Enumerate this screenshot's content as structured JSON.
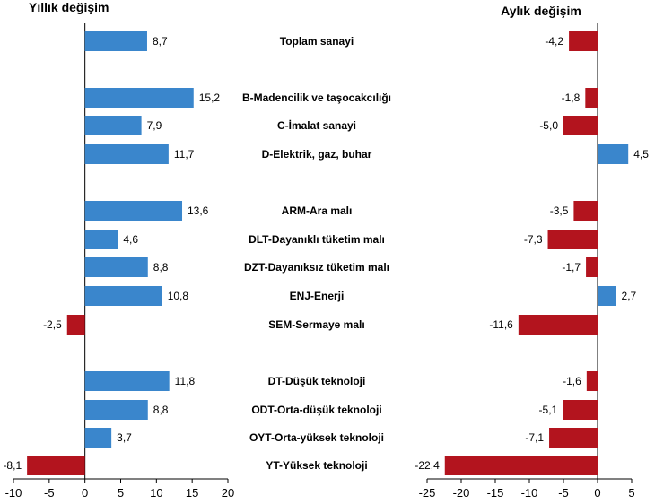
{
  "chart_data": [
    {
      "type": "bar",
      "orientation": "horizontal",
      "title": "Yıllık değişim",
      "categories": [
        "Toplam sanayi",
        "B-Madencilik ve taşocakcılığı",
        "C-İmalat sanayi",
        "D-Elektrik, gaz, buhar",
        "ARM-Ara malı",
        "DLT-Dayanıklı tüketim malı",
        "DZT-Dayanıksız tüketim malı",
        "ENJ-Enerji",
        "SEM-Sermaye malı",
        "DT-Düşük teknoloji",
        "ODT-Orta-düşük teknoloji",
        "OYT-Orta-yüksek teknoloji",
        "YT-Yüksek teknoloji"
      ],
      "values": [
        8.7,
        15.2,
        7.9,
        11.7,
        13.6,
        4.6,
        8.8,
        10.8,
        -2.5,
        11.8,
        8.8,
        3.7,
        -8.1
      ],
      "value_labels": [
        "8,7",
        "15,2",
        "7,9",
        "11,7",
        "13,6",
        "4,6",
        "8,8",
        "10,8",
        "-2,5",
        "11,8",
        "8,8",
        "3,7",
        "-8,1"
      ],
      "xlim": [
        -10,
        20
      ],
      "xticks": [
        -10,
        -5,
        0,
        5,
        10,
        15,
        20
      ],
      "xtick_labels": [
        "-10",
        "-5",
        "0",
        "5",
        "10",
        "15",
        "20"
      ]
    },
    {
      "type": "bar",
      "orientation": "horizontal",
      "title": "Aylık değişim",
      "categories": [
        "Toplam sanayi",
        "B-Madencilik ve taşocakcılığı",
        "C-İmalat sanayi",
        "D-Elektrik, gaz, buhar",
        "ARM-Ara malı",
        "DLT-Dayanıklı tüketim malı",
        "DZT-Dayanıksız tüketim malı",
        "ENJ-Enerji",
        "SEM-Sermaye malı",
        "DT-Düşük teknoloji",
        "ODT-Orta-düşük teknoloji",
        "OYT-Orta-yüksek teknoloji",
        "YT-Yüksek teknoloji"
      ],
      "values": [
        -4.2,
        -1.8,
        -5.0,
        4.5,
        -3.5,
        -7.3,
        -1.7,
        2.7,
        -11.6,
        -1.6,
        -5.1,
        -7.1,
        -22.4
      ],
      "value_labels": [
        "-4,2",
        "-1,8",
        "-5,0",
        "4,5",
        "-3,5",
        "-7,3",
        "-1,7",
        "2,7",
        "-11,6",
        "-1,6",
        "-5,1",
        "-7,1",
        "-22,4"
      ],
      "xlim": [
        -25,
        5
      ],
      "xticks": [
        -25,
        -20,
        -15,
        -10,
        -5,
        0,
        5
      ],
      "xtick_labels": [
        "-25",
        "-20",
        "-15",
        "-10",
        "-5",
        "0",
        "5"
      ]
    }
  ],
  "colors": {
    "positive": "#3a86cc",
    "negative": "#b3141e"
  }
}
